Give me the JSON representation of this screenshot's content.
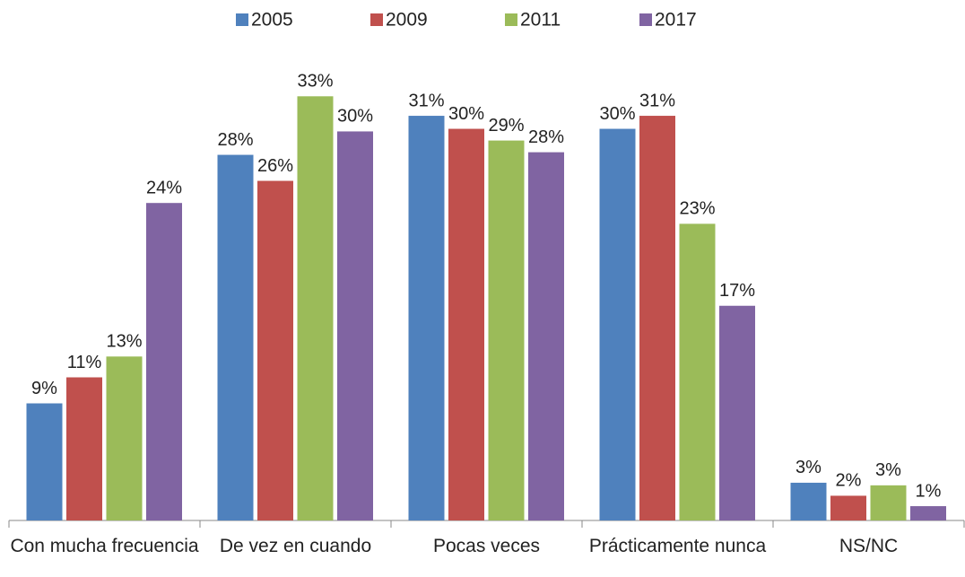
{
  "chart_data": {
    "type": "bar",
    "categories": [
      "Con mucha frecuencia",
      "De vez en cuando",
      "Pocas veces",
      "Prácticamente nunca",
      "NS/NC"
    ],
    "series": [
      {
        "name": "2005",
        "color": "#4f81bd",
        "values": [
          9.0,
          28.1,
          31.1,
          30.1,
          2.9
        ],
        "value_labels": [
          "9%",
          "28%",
          "31%",
          "30%",
          "3%"
        ]
      },
      {
        "name": "2009",
        "color": "#c0504d",
        "values": [
          11.0,
          26.1,
          30.1,
          31.1,
          1.9
        ],
        "value_labels": [
          "11%",
          "26%",
          "30%",
          "31%",
          "2%"
        ]
      },
      {
        "name": "2011",
        "color": "#9bbb59",
        "values": [
          12.6,
          32.6,
          29.2,
          22.8,
          2.7
        ],
        "value_labels": [
          "13%",
          "33%",
          "29%",
          "23%",
          "3%"
        ]
      },
      {
        "name": "2017",
        "color": "#8064a2",
        "values": [
          24.4,
          29.9,
          28.3,
          16.5,
          1.1
        ],
        "value_labels": [
          "24%",
          "30%",
          "28%",
          "17%",
          "1%"
        ]
      }
    ],
    "ylim": [
      0,
      35
    ],
    "legend": "top"
  }
}
